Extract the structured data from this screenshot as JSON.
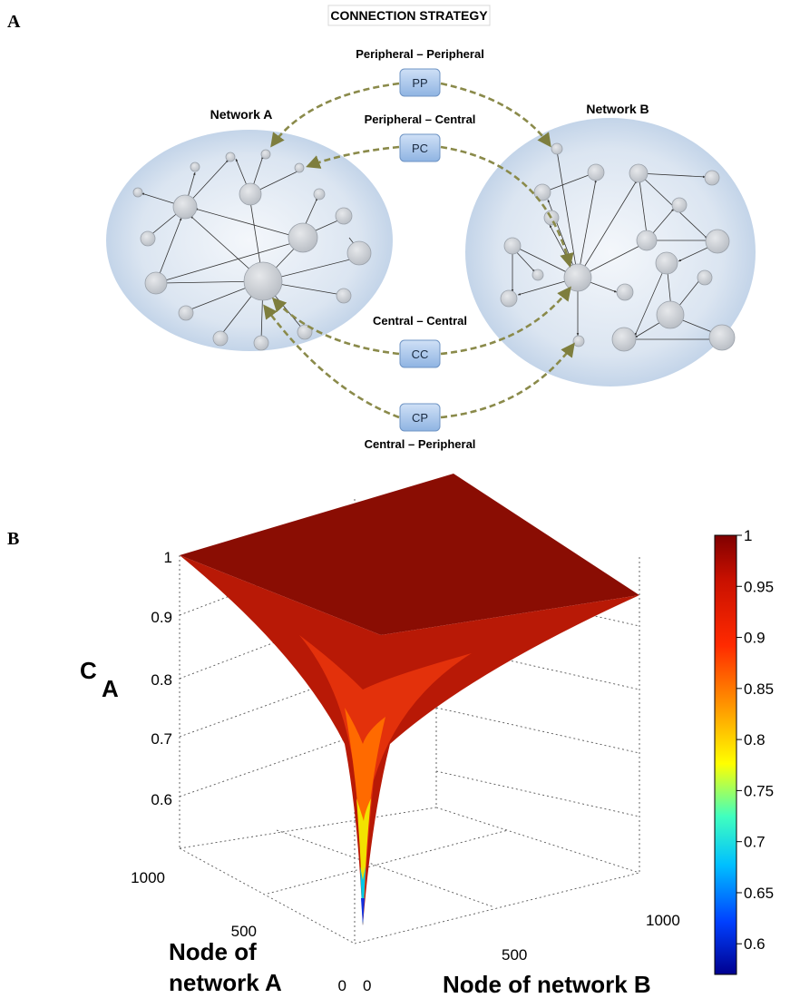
{
  "panel_a": {
    "letter": "A",
    "title": "CONNECTION STRATEGY",
    "network_a_label": "Network A",
    "network_b_label": "Network B",
    "strategies": [
      {
        "code": "PP",
        "label": "Peripheral – Peripheral"
      },
      {
        "code": "PC",
        "label": "Peripheral – Central"
      },
      {
        "code": "CC",
        "label": "Central – Central"
      },
      {
        "code": "CP",
        "label": "Central – Peripheral"
      }
    ],
    "colors": {
      "bubble": "#c9d8ea",
      "node": "#cfd3d8",
      "box": "#a9c8ec",
      "arrow": "#8a8a4a"
    }
  },
  "panel_b": {
    "letter": "B",
    "chart_data": {
      "type": "surface",
      "title": "",
      "ylabel_main": "C",
      "ylabel_sub": "A",
      "x_axis_label": "Node of network B",
      "y_axis_label_line1": "Node of",
      "y_axis_label_line2": "network A",
      "x_range": [
        0,
        1000
      ],
      "y_range": [
        0,
        1000
      ],
      "z_range": [
        0.55,
        1
      ],
      "z_ticks": [
        "1",
        "0.9",
        "0.8",
        "0.7",
        "0.6"
      ],
      "x_ticks": [
        "0",
        "500",
        "1000"
      ],
      "y_ticks": [
        "0",
        "500",
        "1000"
      ],
      "colorbar_ticks": [
        "1",
        "0.95",
        "0.9",
        "0.85",
        "0.8",
        "0.75",
        "0.7",
        "0.65",
        "0.6"
      ],
      "colorbar_range": [
        0.57,
        1
      ],
      "colormap": "jet",
      "grid": true,
      "min_value_at_origin": 0.57,
      "plateau_value": 1
    }
  }
}
